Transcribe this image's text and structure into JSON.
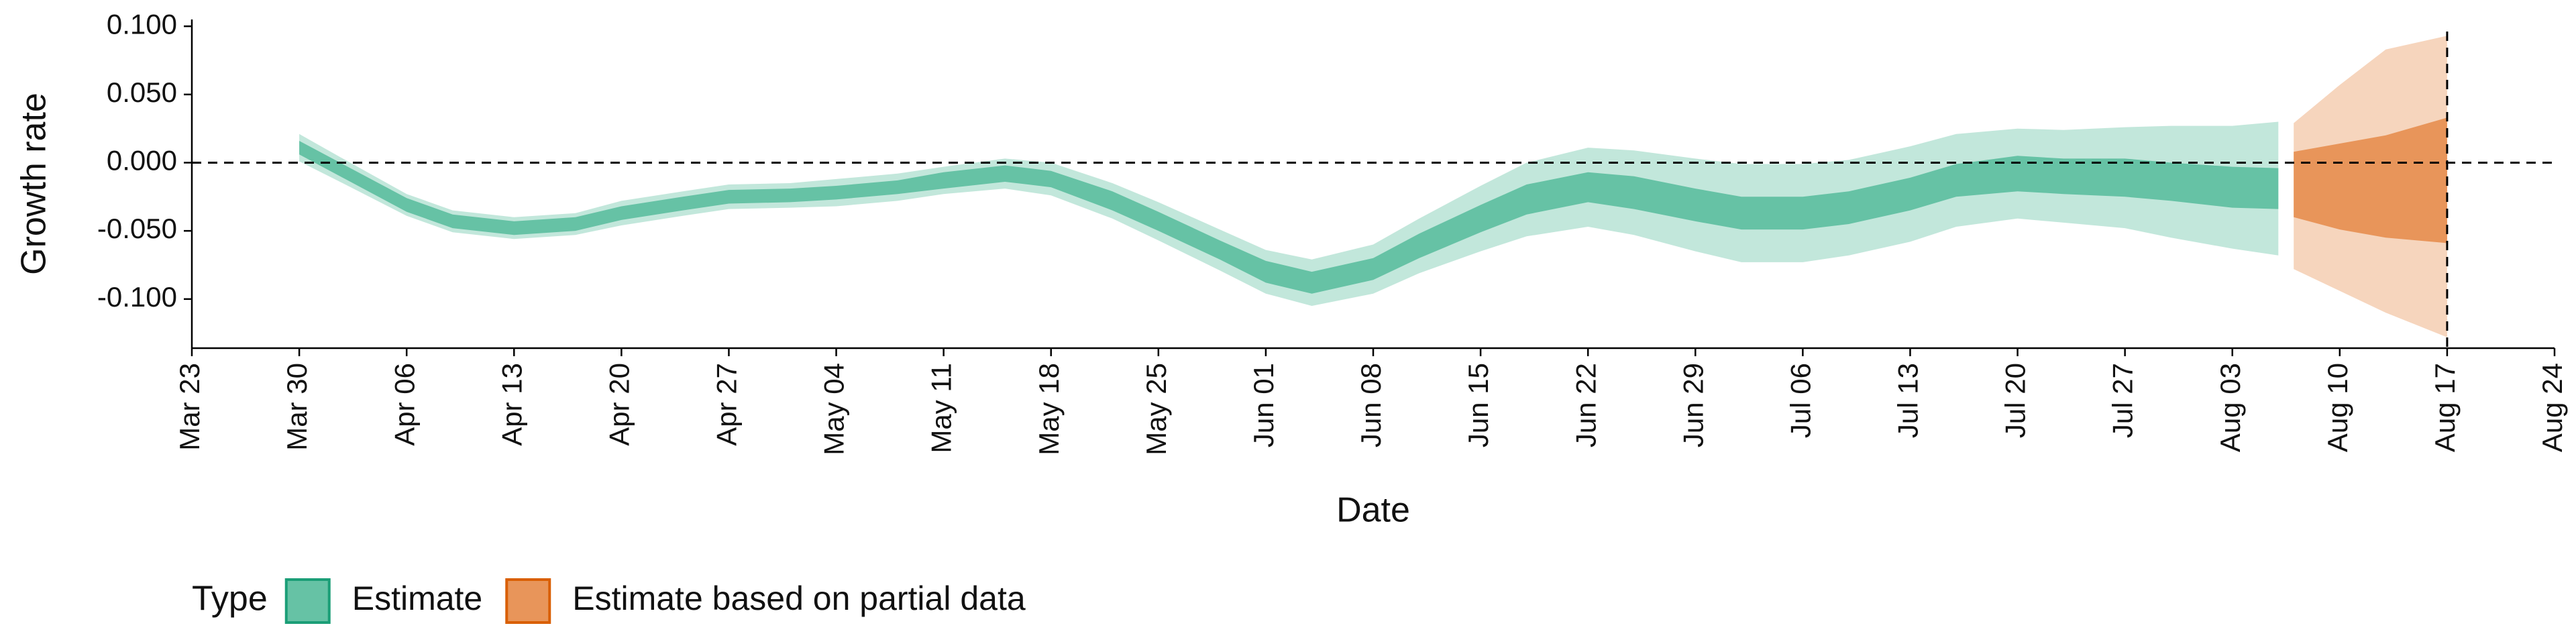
{
  "chart_data": {
    "type": "band",
    "y_label": "Growth rate",
    "x_label": "Date",
    "legend_title": "Type",
    "ylim": [
      -0.136,
      0.105
    ],
    "yticks": [
      {
        "value": -0.1,
        "label": "-0.100"
      },
      {
        "value": -0.05,
        "label": "-0.050"
      },
      {
        "value": 0,
        "label": "0.000"
      },
      {
        "value": 0.05,
        "label": "0.050"
      },
      {
        "value": 0.1,
        "label": "0.100"
      }
    ],
    "xlim": [
      "Mar 23",
      "Aug 24"
    ],
    "xticks": [
      "Mar 23",
      "Mar 30",
      "Apr 06",
      "Apr 13",
      "Apr 20",
      "Apr 27",
      "May 04",
      "May 11",
      "May 18",
      "May 25",
      "Jun 01",
      "Jun 08",
      "Jun 15",
      "Jun 22",
      "Jun 29",
      "Jul 06",
      "Jul 13",
      "Jul 20",
      "Jul 27",
      "Aug 03",
      "Aug 10",
      "Aug 17",
      "Aug 24"
    ],
    "hline": 0,
    "vline": "Aug 17",
    "light_opacity": 0.4,
    "series": [
      {
        "name": "Estimate",
        "color": "#66c2a5",
        "edge_color": "#1b9e77",
        "x": [
          "Mar 30",
          "Apr 02",
          "Apr 06",
          "Apr 09",
          "Apr 13",
          "Apr 17",
          "Apr 20",
          "Apr 24",
          "Apr 27",
          "May 01",
          "May 04",
          "May 08",
          "May 11",
          "May 15",
          "May 18",
          "May 22",
          "May 25",
          "May 29",
          "Jun 01",
          "Jun 04",
          "Jun 08",
          "Jun 11",
          "Jun 15",
          "Jun 18",
          "Jun 22",
          "Jun 25",
          "Jun 29",
          "Jul 02",
          "Jul 06",
          "Jul 09",
          "Jul 13",
          "Jul 16",
          "Jul 20",
          "Jul 23",
          "Jul 27",
          "Jul 30",
          "Aug 03",
          "Aug 06"
        ],
        "lower_90": [
          0.001,
          -0.016,
          -0.039,
          -0.051,
          -0.056,
          -0.053,
          -0.046,
          -0.039,
          -0.034,
          -0.033,
          -0.032,
          -0.028,
          -0.023,
          -0.019,
          -0.024,
          -0.041,
          -0.057,
          -0.079,
          -0.096,
          -0.105,
          -0.096,
          -0.081,
          -0.065,
          -0.054,
          -0.047,
          -0.053,
          -0.065,
          -0.073,
          -0.073,
          -0.068,
          -0.058,
          -0.047,
          -0.041,
          -0.044,
          -0.048,
          -0.055,
          -0.063,
          -0.068
        ],
        "upper_90": [
          0.021,
          0.002,
          -0.023,
          -0.035,
          -0.04,
          -0.037,
          -0.028,
          -0.021,
          -0.016,
          -0.015,
          -0.012,
          -0.008,
          -0.003,
          0.003,
          0,
          -0.015,
          -0.029,
          -0.049,
          -0.064,
          -0.071,
          -0.06,
          -0.041,
          -0.017,
          0,
          0.011,
          0.009,
          0.003,
          -0.001,
          -0.001,
          0.002,
          0.012,
          0.021,
          0.025,
          0.024,
          0.026,
          0.027,
          0.027,
          0.03
        ],
        "lower_50": [
          0.006,
          -0.012,
          -0.036,
          -0.048,
          -0.053,
          -0.05,
          -0.042,
          -0.035,
          -0.03,
          -0.029,
          -0.027,
          -0.023,
          -0.019,
          -0.014,
          -0.018,
          -0.035,
          -0.05,
          -0.071,
          -0.088,
          -0.096,
          -0.086,
          -0.07,
          -0.051,
          -0.038,
          -0.029,
          -0.034,
          -0.043,
          -0.049,
          -0.049,
          -0.045,
          -0.035,
          -0.025,
          -0.021,
          -0.023,
          -0.025,
          -0.028,
          -0.033,
          -0.034
        ],
        "upper_50": [
          0.016,
          -0.002,
          -0.026,
          -0.038,
          -0.043,
          -0.04,
          -0.032,
          -0.025,
          -0.02,
          -0.019,
          -0.017,
          -0.013,
          -0.007,
          -0.002,
          -0.006,
          -0.021,
          -0.036,
          -0.057,
          -0.072,
          -0.08,
          -0.07,
          -0.052,
          -0.031,
          -0.016,
          -0.007,
          -0.01,
          -0.019,
          -0.025,
          -0.025,
          -0.021,
          -0.011,
          -0.001,
          0.005,
          0.003,
          0.003,
          0,
          -0.003,
          -0.004
        ]
      },
      {
        "name": "Estimate based on partial data",
        "color": "#e8955a",
        "edge_color": "#d95f02",
        "x": [
          "Aug 07",
          "Aug 10",
          "Aug 13",
          "Aug 17"
        ],
        "lower_90": [
          -0.078,
          -0.094,
          -0.11,
          -0.128
        ],
        "upper_90": [
          0.029,
          0.057,
          0.083,
          0.093
        ],
        "lower_50": [
          -0.04,
          -0.049,
          -0.055,
          -0.059
        ],
        "upper_50": [
          0.008,
          0.014,
          0.02,
          0.033
        ]
      }
    ]
  }
}
